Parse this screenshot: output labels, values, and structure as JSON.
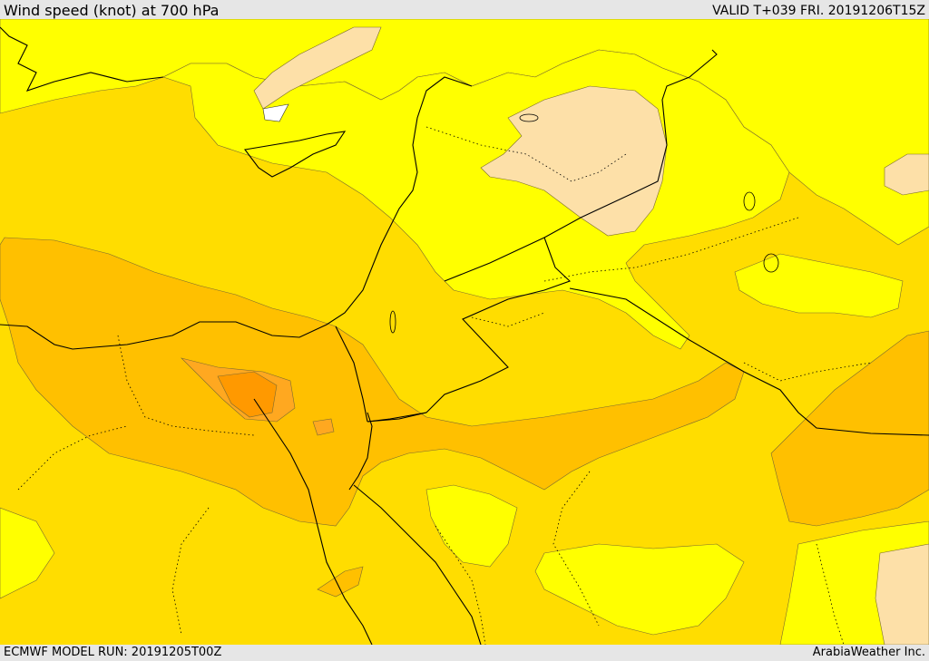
{
  "header": {
    "title": "Wind speed (knot) at 700 hPa",
    "valid": "VALID T+039 FRI. 20191206T15Z"
  },
  "footer": {
    "model_run": "ECMWF MODEL RUN: 20191205T00Z",
    "credit": "ArabiaWeather Inc."
  },
  "colors": {
    "band_light_peach": "#fde0a8",
    "band_yellow": "#ffff00",
    "band_gold": "#ffdd00",
    "band_amber": "#ffc000",
    "band_orange": "#ffa820",
    "band_dark_orange": "#ff9900",
    "band_white": "#ffffff",
    "coastline": "#000000"
  }
}
